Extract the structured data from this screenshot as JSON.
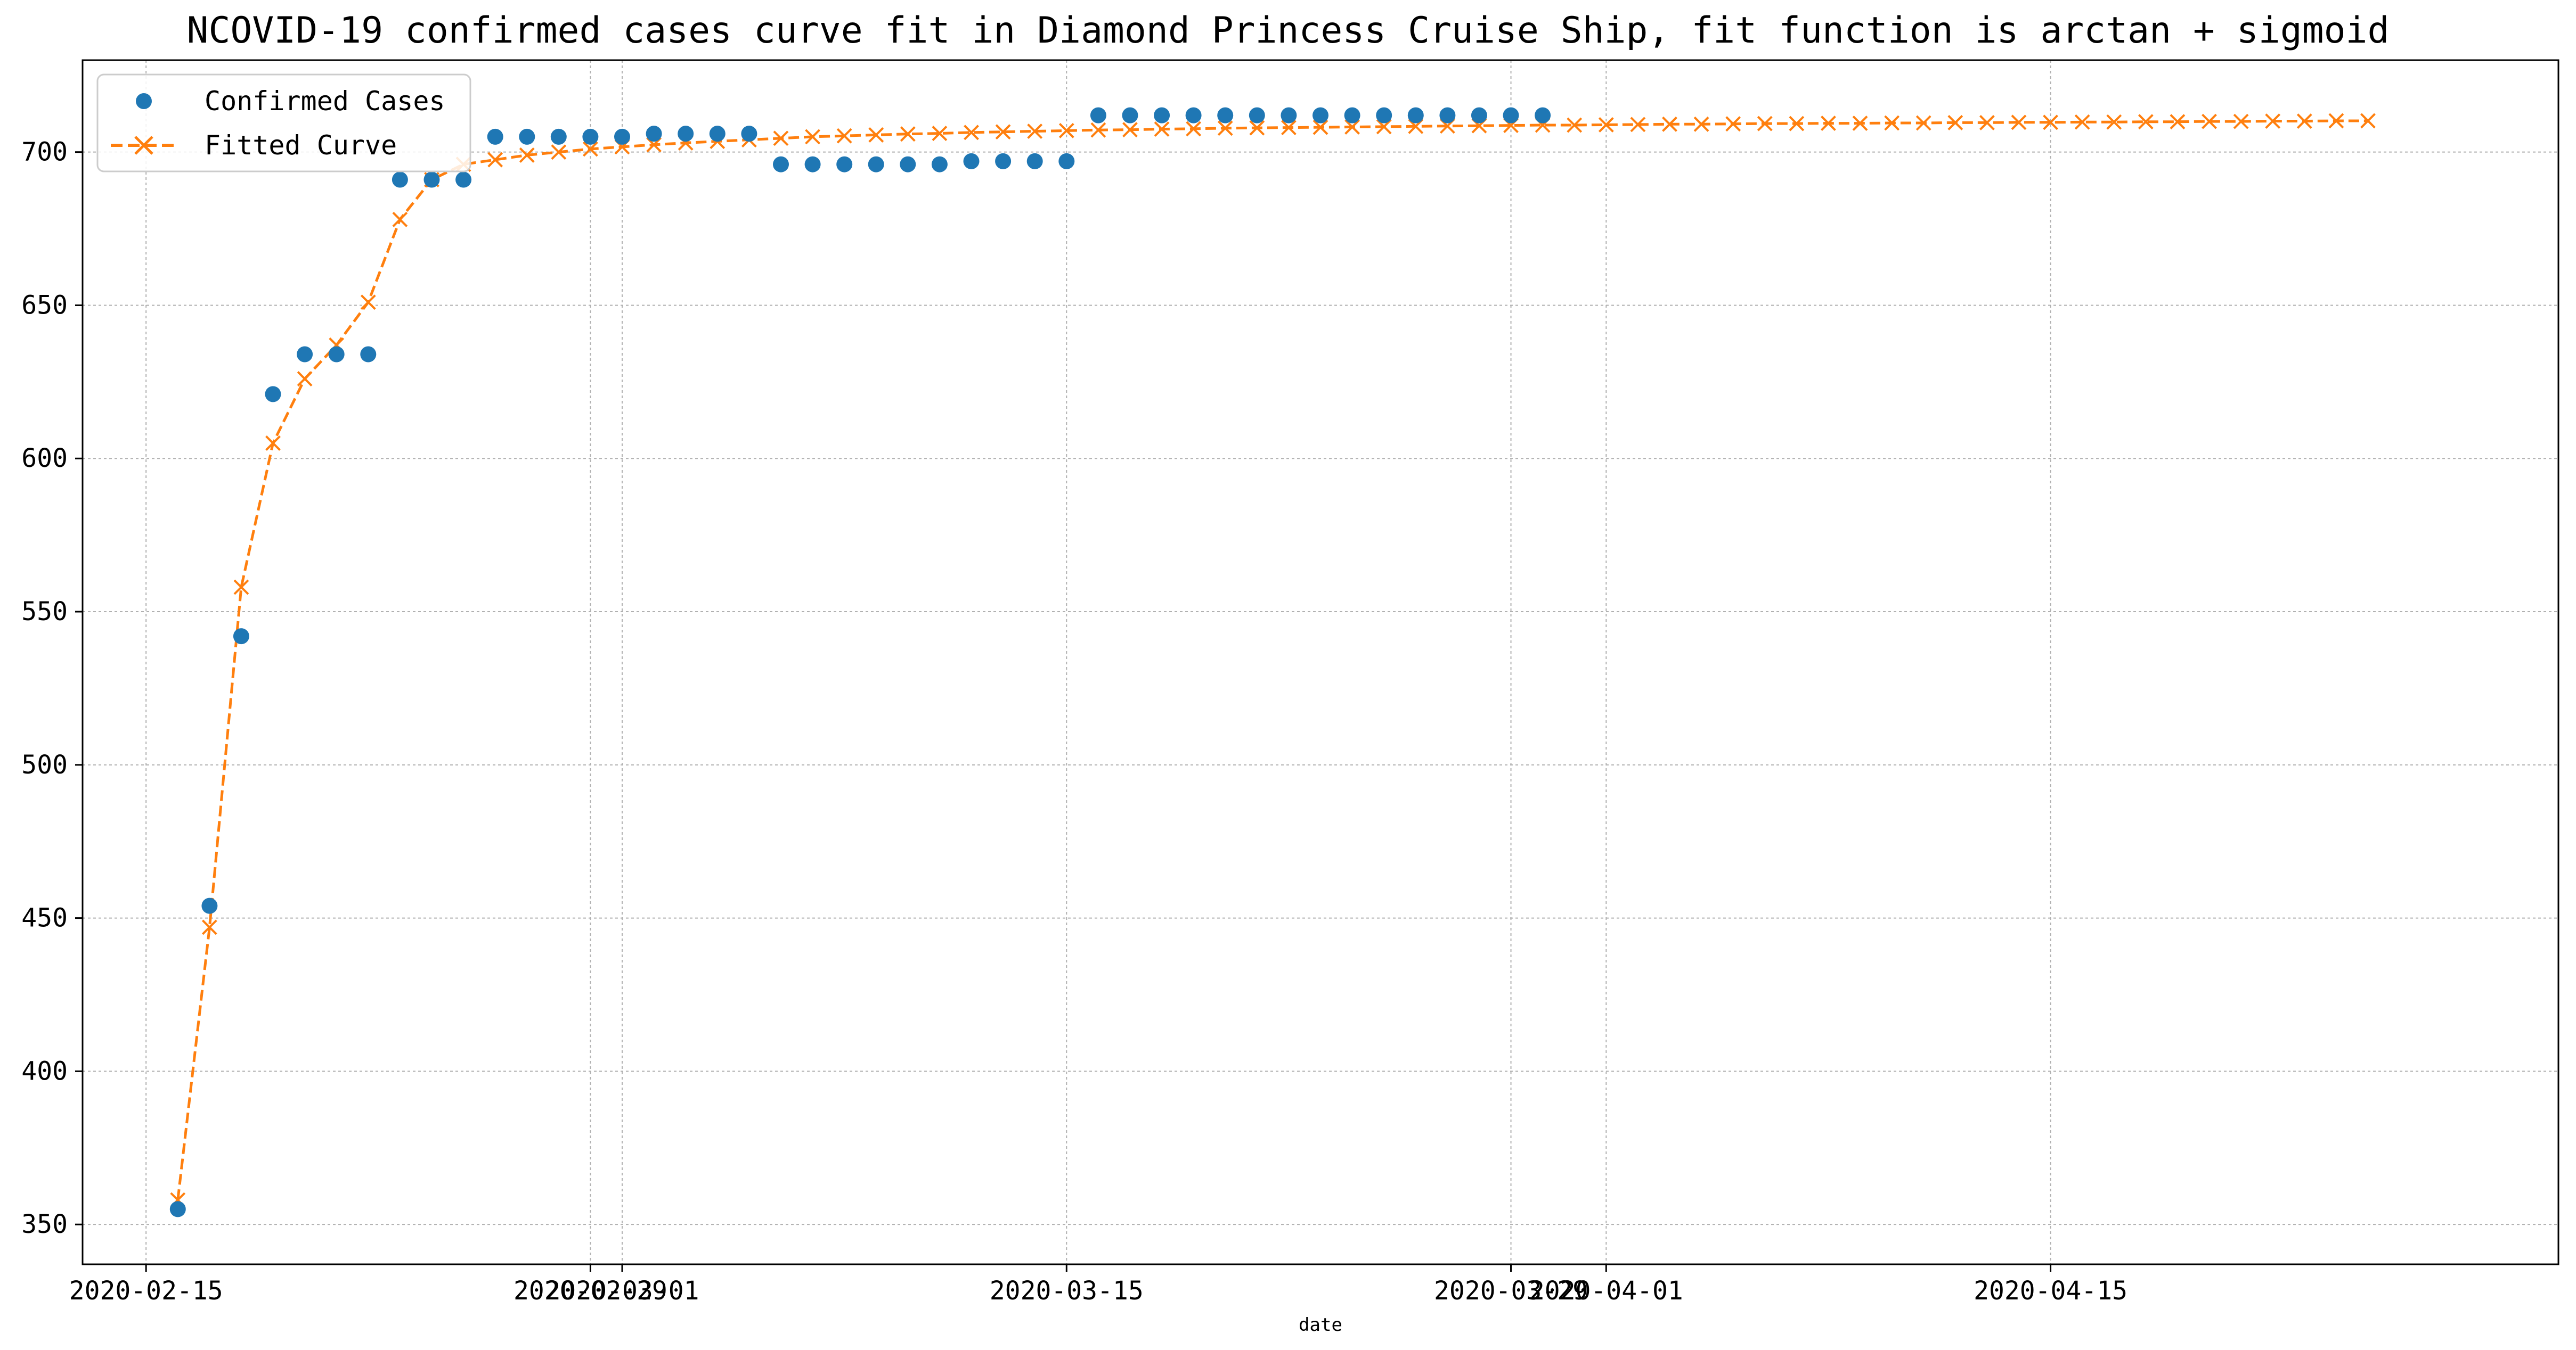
{
  "chart_data": {
    "type": "line",
    "title": "NCOVID-19 confirmed cases curve fit in Diamond Princess Cruise Ship, fit function is arctan + sigmoid",
    "xlabel": "date",
    "ylabel": "",
    "xlim": [
      "2020-02-13",
      "2020-05-01"
    ],
    "ylim": [
      337,
      730
    ],
    "grid": true,
    "legend_position": "upper-left",
    "x_tick_labels": [
      {
        "date": "2020-02-15",
        "label": "2020-02-15"
      },
      {
        "date": "2020-02-29",
        "label": "2020-02-29"
      },
      {
        "date": "2020-03-01",
        "label": "2020-03-01"
      },
      {
        "date": "2020-03-15",
        "label": "2020-03-15"
      },
      {
        "date": "2020-03-29",
        "label": "2020-03-29"
      },
      {
        "date": "2020-04-01",
        "label": "2020-04-01"
      },
      {
        "date": "2020-04-15",
        "label": "2020-04-15"
      }
    ],
    "y_ticks": [
      350,
      400,
      450,
      500,
      550,
      600,
      650,
      700
    ],
    "series": [
      {
        "name": "Confirmed Cases",
        "style": "markers",
        "color": "#1f77b4",
        "start_date": "2020-02-16",
        "values": [
          355,
          454,
          542,
          621,
          634,
          634,
          634,
          691,
          691,
          691,
          705,
          705,
          705,
          705,
          705,
          706,
          706,
          706,
          706,
          696,
          696,
          696,
          696,
          696,
          696,
          697,
          697,
          697,
          697,
          712,
          712,
          712,
          712,
          712,
          712,
          712,
          712,
          712,
          712,
          712,
          712,
          712,
          712,
          712
        ]
      },
      {
        "name": "Fitted Curve",
        "style": "dashed-line-x-markers",
        "color": "#ff7f0e",
        "start_date": "2020-02-16",
        "values": [
          358,
          447,
          558,
          605,
          626,
          637,
          651,
          678,
          691,
          696,
          697.5,
          699,
          700,
          701,
          701.7,
          702.4,
          703,
          703.5,
          704,
          704.5,
          705,
          705.3,
          705.6,
          705.9,
          706.1,
          706.4,
          706.6,
          706.8,
          707,
          707.2,
          707.3,
          707.5,
          707.6,
          707.8,
          707.9,
          708,
          708.1,
          708.2,
          708.3,
          708.4,
          708.5,
          708.6,
          708.7,
          708.8,
          708.8,
          708.9,
          709,
          709.1,
          709.1,
          709.2,
          709.3,
          709.3,
          709.4,
          709.4,
          709.5,
          709.5,
          709.6,
          709.6,
          709.7,
          709.7,
          709.8,
          709.8,
          709.9,
          709.9,
          710,
          710,
          710.1,
          710.1,
          710.2,
          710.2
        ]
      }
    ]
  }
}
